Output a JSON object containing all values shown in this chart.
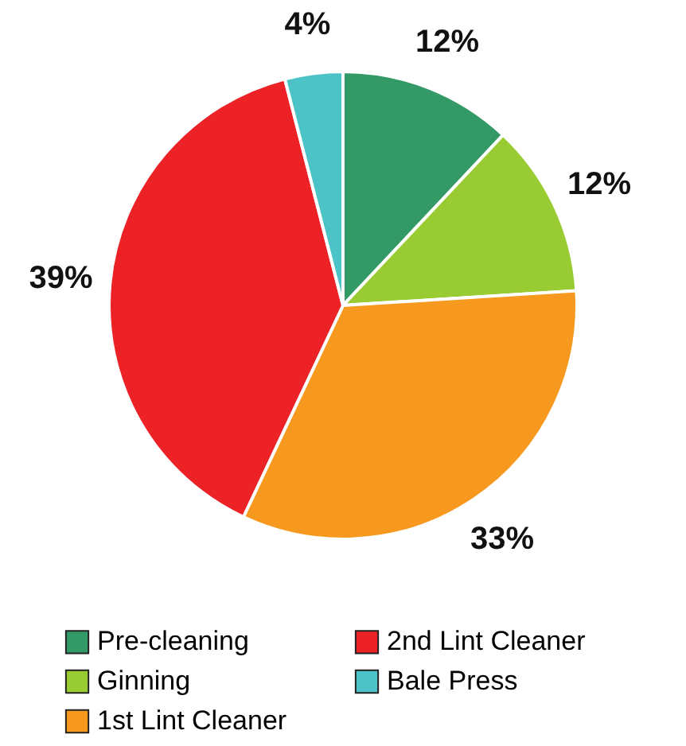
{
  "chart_data": {
    "type": "pie",
    "categories": [
      "Pre-cleaning",
      "Ginning",
      "1st Lint Cleaner",
      "2nd Lint Cleaner",
      "Bale Press"
    ],
    "values": [
      12,
      12,
      33,
      39,
      4
    ],
    "colors": [
      "#339966",
      "#99cc33",
      "#f7991f",
      "#ec2227",
      "#4cc3c7"
    ],
    "value_labels": [
      "12%",
      "12%",
      "33%",
      "39%",
      "4%"
    ],
    "legend": "bottom"
  }
}
